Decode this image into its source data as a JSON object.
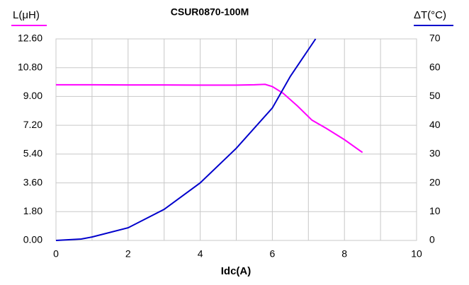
{
  "chart_data": {
    "type": "line",
    "title": "CSUR0870-100M",
    "xlabel": "Idc(A)",
    "ylabel": "L(μH)",
    "y2label": "ΔT(°C)",
    "xlim": [
      0,
      10
    ],
    "xticks": [
      0,
      2,
      4,
      6,
      8,
      10
    ],
    "ylim": [
      0,
      12.6
    ],
    "yticks": [
      {
        "value": 0,
        "label": "0.00"
      },
      {
        "value": 1.8,
        "label": "1.80"
      },
      {
        "value": 3.6,
        "label": "3.60"
      },
      {
        "value": 5.4,
        "label": "5.40"
      },
      {
        "value": 7.2,
        "label": "7.20"
      },
      {
        "value": 9,
        "label": "9.00"
      },
      {
        "value": 10.8,
        "label": "10.80"
      },
      {
        "value": 12.6,
        "label": "12.60"
      }
    ],
    "y2lim": [
      0,
      70
    ],
    "y2ticks": [
      0,
      10,
      20,
      30,
      40,
      50,
      60,
      70
    ],
    "grid": true,
    "series": [
      {
        "color": "#ff00ff",
        "x": [
          0,
          1,
          2,
          3,
          4,
          5,
          5.5,
          5.8,
          6.0,
          6.3,
          6.7,
          7.1,
          7.5,
          8.0,
          8.5
        ],
        "values": [
          9.73,
          9.73,
          9.72,
          9.72,
          9.71,
          9.71,
          9.73,
          9.76,
          9.62,
          9.2,
          8.4,
          7.52,
          7.0,
          6.3,
          5.5
        ]
      },
      {
        "color": "#0000cc",
        "axis": "y2",
        "x": [
          0,
          0.7,
          1,
          2,
          3,
          4,
          5,
          6,
          6.5,
          7.2
        ],
        "values": [
          0,
          0.5,
          1.2,
          4.4,
          10.8,
          20,
          32,
          46,
          57,
          70
        ]
      }
    ]
  }
}
